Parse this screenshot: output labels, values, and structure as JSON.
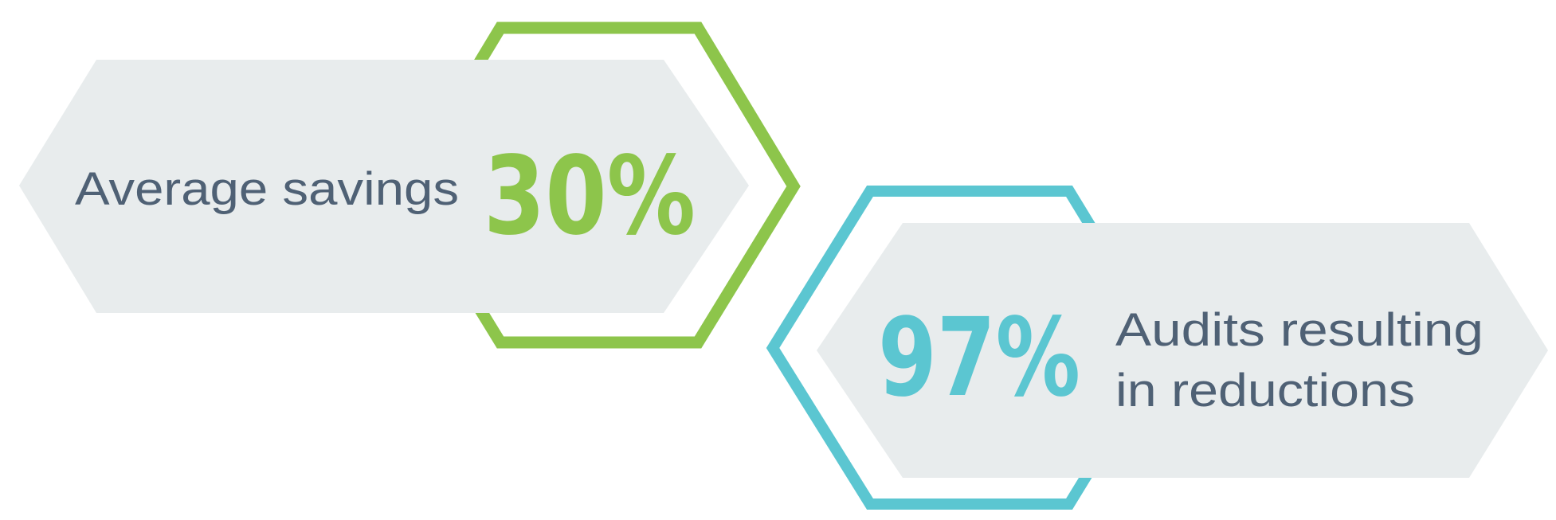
{
  "colors": {
    "green": "#8dc54b",
    "blue": "#5bc6d1",
    "panel": "#e8eced",
    "text": "#4f6175"
  },
  "stats": [
    {
      "value": "30%",
      "label": "Average savings",
      "accent": "green"
    },
    {
      "value": "97%",
      "label_line1": "Audits resulting",
      "label_line2": "in reductions",
      "accent": "blue"
    }
  ]
}
